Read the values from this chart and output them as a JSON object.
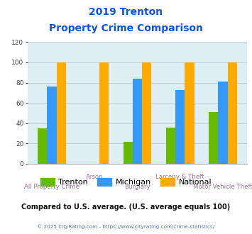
{
  "title_line1": "2019 Trenton",
  "title_line2": "Property Crime Comparison",
  "categories": [
    "All Property Crime",
    "Arson",
    "Burglary",
    "Larceny & Theft",
    "Motor Vehicle Theft"
  ],
  "trenton": [
    35,
    0,
    22,
    36,
    51
  ],
  "michigan": [
    76,
    0,
    84,
    73,
    81
  ],
  "national": [
    100,
    100,
    100,
    100,
    100
  ],
  "trenton_color": "#66bb00",
  "michigan_color": "#3399ff",
  "national_color": "#ffaa00",
  "bar_width": 0.22,
  "ylim": [
    0,
    120
  ],
  "yticks": [
    0,
    20,
    40,
    60,
    80,
    100,
    120
  ],
  "bg_color": "#ddeef5",
  "fig_bg": "#ffffff",
  "title_color": "#1155cc",
  "xlabel_color": "#997799",
  "footer_text": "Compared to U.S. average. (U.S. average equals 100)",
  "footer_color": "#111111",
  "credit_text": "© 2025 CityRating.com - https://www.cityrating.com/crime-statistics/",
  "credit_color": "#6677aa",
  "legend_labels": [
    "Trenton",
    "Michigan",
    "National"
  ],
  "grid_color": "#c0d0dd",
  "xlabel_top": [
    "",
    "Arson",
    "",
    "Larceny & Theft",
    ""
  ],
  "xlabel_bot": [
    "All Property Crime",
    "",
    "Burglary",
    "",
    "Motor Vehicle Theft"
  ]
}
